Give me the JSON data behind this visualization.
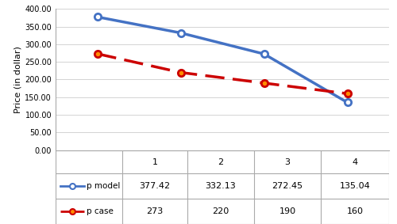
{
  "x": [
    1,
    2,
    3,
    4
  ],
  "p_model": [
    377.42,
    332.13,
    272.45,
    135.04
  ],
  "p_case": [
    273,
    220,
    190,
    160
  ],
  "p_model_label": "p model",
  "p_case_label": "p case",
  "p_model_color": "#4472C4",
  "p_case_color": "#CC0000",
  "ylabel": "Price (in dollar)",
  "ylim": [
    0,
    400
  ],
  "yticks": [
    0,
    50,
    100,
    150,
    200,
    250,
    300,
    350,
    400
  ],
  "ytick_labels": [
    "0.00",
    "50.00",
    "100.00",
    "150.00",
    "200.00",
    "250.00",
    "300.00",
    "350.00",
    "400.00"
  ],
  "xticks": [
    1,
    2,
    3,
    4
  ],
  "col_headers": [
    "",
    "1",
    "2",
    "3",
    "4"
  ],
  "table_row1": [
    "377.42",
    "332.13",
    "272.45",
    "135.04"
  ],
  "table_row2": [
    "273",
    "220",
    "190",
    "160"
  ],
  "background_color": "#FFFFFF",
  "grid_color": "#D3D3D3",
  "border_color": "#AAAAAA"
}
